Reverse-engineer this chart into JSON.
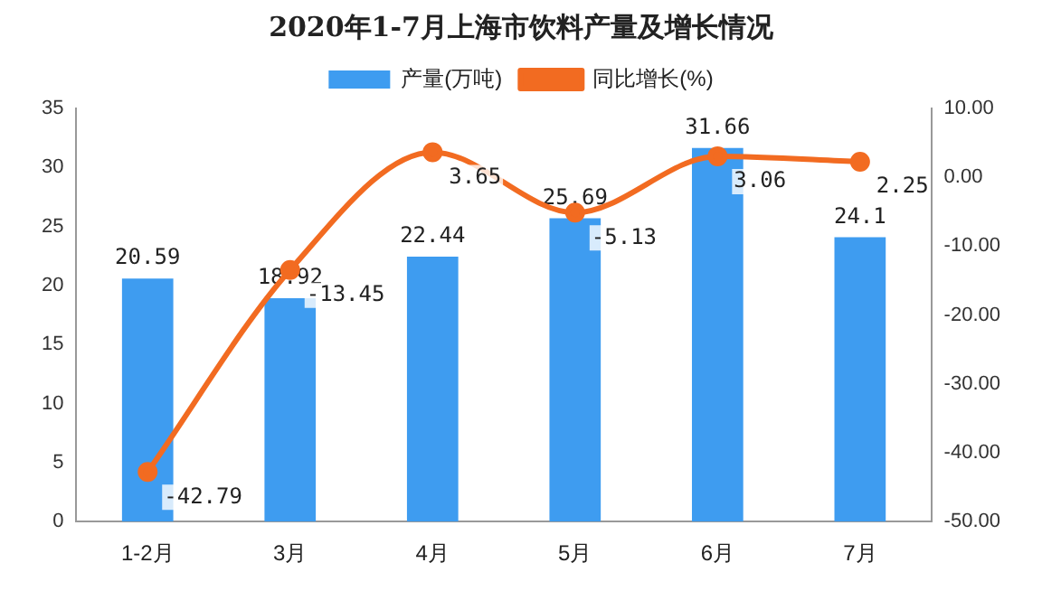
{
  "chart_data": {
    "type": "bar",
    "title": "2020年1-7月上海市饮料产量及增长情况",
    "categories": [
      "1-2月",
      "3月",
      "4月",
      "5月",
      "6月",
      "7月"
    ],
    "series": [
      {
        "name": "产量(万吨)",
        "color": "#3e9cf0",
        "values": [
          20.59,
          18.92,
          22.44,
          25.69,
          31.66,
          24.1
        ]
      },
      {
        "name": "同比增长(%)",
        "type": "line",
        "axis": "y2",
        "color": "#f26b21",
        "values": [
          -42.79,
          -13.45,
          3.65,
          -5.13,
          3.06,
          2.25
        ]
      }
    ],
    "ylim": [
      0,
      35
    ],
    "yticks": [
      0,
      5,
      10,
      15,
      20,
      25,
      30,
      35
    ],
    "y2lim": [
      -50,
      10
    ],
    "y2ticks": [
      {
        "value": -50,
        "label": "-50.00"
      },
      {
        "value": -40,
        "label": "-40.00"
      },
      {
        "value": -30,
        "label": "-30.00"
      },
      {
        "value": -20,
        "label": "-20.00"
      },
      {
        "value": -10,
        "label": "-10.00"
      },
      {
        "value": 0,
        "label": "0.00"
      },
      {
        "value": 10,
        "label": "10.00"
      }
    ],
    "data_labels": true,
    "legend": "top",
    "grid": false,
    "marker": "circle",
    "line_style": "solid"
  }
}
